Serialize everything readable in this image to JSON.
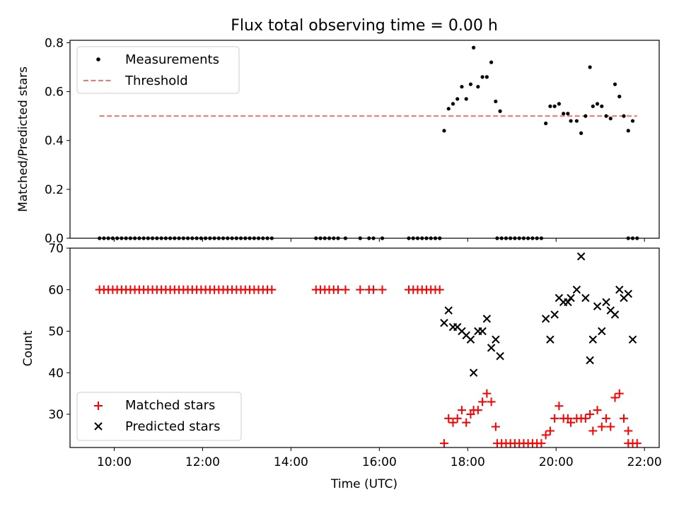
{
  "chart_data": [
    {
      "type": "scatter",
      "title": "Flux total observing time = 0.00 h",
      "xlabel": "",
      "ylabel": "Matched/Predicted stars",
      "xlim": [
        "09:00",
        "22:20"
      ],
      "ylim": [
        0,
        0.81
      ],
      "yticks": [
        "0.0",
        "0.2",
        "0.4",
        "0.6",
        "0.8"
      ],
      "legend": {
        "placement": "upper-left",
        "entries": [
          "Measurements",
          "Threshold"
        ]
      },
      "colors": {
        "measurements": "#000000",
        "threshold": "#ff7070"
      },
      "threshold": {
        "name": "Threshold",
        "value": 0.5,
        "x_start": "09:40",
        "x_end": "21:50"
      },
      "series": [
        {
          "name": "Measurements",
          "points": [
            [
              "09:40",
              0
            ],
            [
              "09:46",
              0
            ],
            [
              "09:52",
              0
            ],
            [
              "09:58",
              0
            ],
            [
              "10:04",
              0
            ],
            [
              "10:10",
              0
            ],
            [
              "10:16",
              0
            ],
            [
              "10:22",
              0
            ],
            [
              "10:28",
              0
            ],
            [
              "10:34",
              0
            ],
            [
              "10:40",
              0
            ],
            [
              "10:46",
              0
            ],
            [
              "10:52",
              0
            ],
            [
              "10:58",
              0
            ],
            [
              "11:04",
              0
            ],
            [
              "11:10",
              0
            ],
            [
              "11:16",
              0
            ],
            [
              "11:22",
              0
            ],
            [
              "11:28",
              0
            ],
            [
              "11:34",
              0
            ],
            [
              "11:40",
              0
            ],
            [
              "11:46",
              0
            ],
            [
              "11:52",
              0
            ],
            [
              "11:58",
              0
            ],
            [
              "12:04",
              0
            ],
            [
              "12:10",
              0
            ],
            [
              "12:16",
              0
            ],
            [
              "12:22",
              0
            ],
            [
              "12:28",
              0
            ],
            [
              "12:34",
              0
            ],
            [
              "12:40",
              0
            ],
            [
              "12:46",
              0
            ],
            [
              "12:52",
              0
            ],
            [
              "12:58",
              0
            ],
            [
              "13:04",
              0
            ],
            [
              "13:10",
              0
            ],
            [
              "13:16",
              0
            ],
            [
              "13:22",
              0
            ],
            [
              "13:28",
              0
            ],
            [
              "13:34",
              0
            ],
            [
              "14:34",
              0
            ],
            [
              "14:40",
              0
            ],
            [
              "14:46",
              0
            ],
            [
              "14:52",
              0
            ],
            [
              "14:58",
              0
            ],
            [
              "15:04",
              0
            ],
            [
              "15:14",
              0
            ],
            [
              "15:34",
              0
            ],
            [
              "15:46",
              0
            ],
            [
              "15:52",
              0
            ],
            [
              "16:04",
              0
            ],
            [
              "16:40",
              0
            ],
            [
              "16:46",
              0
            ],
            [
              "16:52",
              0
            ],
            [
              "16:58",
              0
            ],
            [
              "17:04",
              0
            ],
            [
              "17:10",
              0
            ],
            [
              "17:16",
              0
            ],
            [
              "17:22",
              0
            ],
            [
              "17:28",
              0.44
            ],
            [
              "17:34",
              0.53
            ],
            [
              "17:40",
              0.55
            ],
            [
              "17:46",
              0.57
            ],
            [
              "17:52",
              0.62
            ],
            [
              "17:58",
              0.57
            ],
            [
              "18:04",
              0.63
            ],
            [
              "18:08",
              0.78
            ],
            [
              "18:14",
              0.62
            ],
            [
              "18:20",
              0.66
            ],
            [
              "18:26",
              0.66
            ],
            [
              "18:32",
              0.72
            ],
            [
              "18:38",
              0.56
            ],
            [
              "18:44",
              0.52
            ],
            [
              "18:40",
              0
            ],
            [
              "18:46",
              0
            ],
            [
              "18:52",
              0
            ],
            [
              "18:58",
              0
            ],
            [
              "19:04",
              0
            ],
            [
              "19:10",
              0
            ],
            [
              "19:16",
              0
            ],
            [
              "19:22",
              0
            ],
            [
              "19:28",
              0
            ],
            [
              "19:34",
              0
            ],
            [
              "19:40",
              0
            ],
            [
              "19:46",
              0.47
            ],
            [
              "19:52",
              0.54
            ],
            [
              "19:58",
              0.54
            ],
            [
              "20:04",
              0.55
            ],
            [
              "20:10",
              0.51
            ],
            [
              "20:16",
              0.51
            ],
            [
              "20:20",
              0.48
            ],
            [
              "20:28",
              0.48
            ],
            [
              "20:34",
              0.43
            ],
            [
              "20:40",
              0.5
            ],
            [
              "20:46",
              0.7
            ],
            [
              "20:50",
              0.54
            ],
            [
              "20:56",
              0.55
            ],
            [
              "21:02",
              0.54
            ],
            [
              "21:08",
              0.5
            ],
            [
              "21:14",
              0.49
            ],
            [
              "21:20",
              0.63
            ],
            [
              "21:26",
              0.58
            ],
            [
              "21:32",
              0.5
            ],
            [
              "21:38",
              0.44
            ],
            [
              "21:44",
              0.48
            ],
            [
              "21:38",
              0
            ],
            [
              "21:44",
              0
            ],
            [
              "21:50",
              0
            ]
          ]
        }
      ]
    },
    {
      "type": "scatter",
      "title": "",
      "xlabel": "Time (UTC)",
      "ylabel": "Count",
      "xlim": [
        "09:00",
        "22:20"
      ],
      "ylim": [
        22,
        70
      ],
      "xticks": [
        "10:00",
        "12:00",
        "14:00",
        "16:00",
        "18:00",
        "20:00",
        "22:00"
      ],
      "yticks": [
        "30",
        "40",
        "50",
        "60",
        "70"
      ],
      "legend": {
        "placement": "lower-left",
        "entries": [
          "Matched stars",
          "Predicted stars"
        ]
      },
      "colors": {
        "matched": "#ff0000",
        "predicted": "#000000"
      },
      "series": [
        {
          "name": "Matched stars",
          "marker": "plus",
          "points": [
            [
              "09:40",
              60
            ],
            [
              "09:46",
              60
            ],
            [
              "09:52",
              60
            ],
            [
              "09:58",
              60
            ],
            [
              "10:04",
              60
            ],
            [
              "10:10",
              60
            ],
            [
              "10:16",
              60
            ],
            [
              "10:22",
              60
            ],
            [
              "10:28",
              60
            ],
            [
              "10:34",
              60
            ],
            [
              "10:40",
              60
            ],
            [
              "10:46",
              60
            ],
            [
              "10:52",
              60
            ],
            [
              "10:58",
              60
            ],
            [
              "11:04",
              60
            ],
            [
              "11:10",
              60
            ],
            [
              "11:16",
              60
            ],
            [
              "11:22",
              60
            ],
            [
              "11:28",
              60
            ],
            [
              "11:34",
              60
            ],
            [
              "11:40",
              60
            ],
            [
              "11:46",
              60
            ],
            [
              "11:52",
              60
            ],
            [
              "11:58",
              60
            ],
            [
              "12:04",
              60
            ],
            [
              "12:10",
              60
            ],
            [
              "12:16",
              60
            ],
            [
              "12:22",
              60
            ],
            [
              "12:28",
              60
            ],
            [
              "12:34",
              60
            ],
            [
              "12:40",
              60
            ],
            [
              "12:46",
              60
            ],
            [
              "12:52",
              60
            ],
            [
              "12:58",
              60
            ],
            [
              "13:04",
              60
            ],
            [
              "13:10",
              60
            ],
            [
              "13:16",
              60
            ],
            [
              "13:22",
              60
            ],
            [
              "13:28",
              60
            ],
            [
              "13:34",
              60
            ],
            [
              "14:34",
              60
            ],
            [
              "14:40",
              60
            ],
            [
              "14:46",
              60
            ],
            [
              "14:52",
              60
            ],
            [
              "14:58",
              60
            ],
            [
              "15:04",
              60
            ],
            [
              "15:14",
              60
            ],
            [
              "15:34",
              60
            ],
            [
              "15:46",
              60
            ],
            [
              "15:52",
              60
            ],
            [
              "16:04",
              60
            ],
            [
              "16:40",
              60
            ],
            [
              "16:46",
              60
            ],
            [
              "16:52",
              60
            ],
            [
              "16:58",
              60
            ],
            [
              "17:04",
              60
            ],
            [
              "17:10",
              60
            ],
            [
              "17:16",
              60
            ],
            [
              "17:22",
              60
            ],
            [
              "17:28",
              23
            ],
            [
              "17:34",
              29
            ],
            [
              "17:40",
              28
            ],
            [
              "17:46",
              29
            ],
            [
              "17:52",
              31
            ],
            [
              "17:58",
              28
            ],
            [
              "18:04",
              30
            ],
            [
              "18:08",
              31
            ],
            [
              "18:14",
              31
            ],
            [
              "18:20",
              33
            ],
            [
              "18:26",
              35
            ],
            [
              "18:32",
              33
            ],
            [
              "18:38",
              27
            ],
            [
              "18:40",
              23
            ],
            [
              "18:46",
              23
            ],
            [
              "18:52",
              23
            ],
            [
              "18:58",
              23
            ],
            [
              "19:04",
              23
            ],
            [
              "19:10",
              23
            ],
            [
              "19:16",
              23
            ],
            [
              "19:22",
              23
            ],
            [
              "19:28",
              23
            ],
            [
              "19:34",
              23
            ],
            [
              "19:40",
              23
            ],
            [
              "19:46",
              25
            ],
            [
              "19:52",
              26
            ],
            [
              "19:58",
              29
            ],
            [
              "20:04",
              32
            ],
            [
              "20:10",
              29
            ],
            [
              "20:16",
              29
            ],
            [
              "20:20",
              28
            ],
            [
              "20:28",
              29
            ],
            [
              "20:34",
              29
            ],
            [
              "20:40",
              29
            ],
            [
              "20:46",
              30
            ],
            [
              "20:50",
              26
            ],
            [
              "20:56",
              31
            ],
            [
              "21:02",
              27
            ],
            [
              "21:08",
              29
            ],
            [
              "21:14",
              27
            ],
            [
              "21:20",
              34
            ],
            [
              "21:26",
              35
            ],
            [
              "21:32",
              29
            ],
            [
              "21:38",
              26
            ],
            [
              "21:38",
              23
            ],
            [
              "21:44",
              23
            ],
            [
              "21:50",
              23
            ]
          ]
        },
        {
          "name": "Predicted stars",
          "marker": "x",
          "points": [
            [
              "17:28",
              52
            ],
            [
              "17:34",
              55
            ],
            [
              "17:40",
              51
            ],
            [
              "17:46",
              51
            ],
            [
              "17:52",
              50
            ],
            [
              "17:58",
              49
            ],
            [
              "18:04",
              48
            ],
            [
              "18:08",
              40
            ],
            [
              "18:14",
              50
            ],
            [
              "18:20",
              50
            ],
            [
              "18:26",
              53
            ],
            [
              "18:32",
              46
            ],
            [
              "18:38",
              48
            ],
            [
              "18:44",
              44
            ],
            [
              "19:46",
              53
            ],
            [
              "19:52",
              48
            ],
            [
              "19:58",
              54
            ],
            [
              "20:04",
              58
            ],
            [
              "20:10",
              57
            ],
            [
              "20:16",
              57
            ],
            [
              "20:20",
              58
            ],
            [
              "20:28",
              60
            ],
            [
              "20:34",
              68
            ],
            [
              "20:40",
              58
            ],
            [
              "20:46",
              43
            ],
            [
              "20:50",
              48
            ],
            [
              "20:56",
              56
            ],
            [
              "21:02",
              50
            ],
            [
              "21:08",
              57
            ],
            [
              "21:14",
              55
            ],
            [
              "21:20",
              54
            ],
            [
              "21:26",
              60
            ],
            [
              "21:32",
              58
            ],
            [
              "21:38",
              59
            ],
            [
              "21:44",
              48
            ]
          ]
        }
      ]
    }
  ]
}
